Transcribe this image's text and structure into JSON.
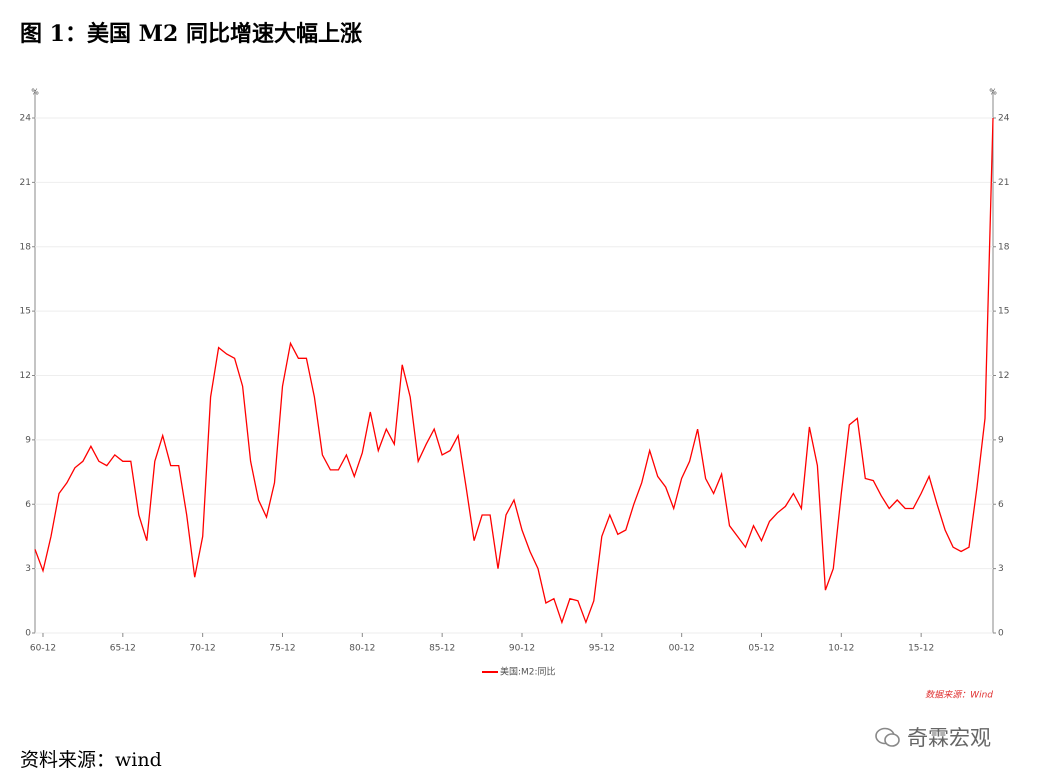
{
  "title": "图 1：美国 M2 同比增速大幅上涨",
  "footer": "资料来源：wind",
  "watermark": "奇霖宏观",
  "chart_data": {
    "type": "line",
    "y_unit": "%",
    "y2_unit": "%",
    "source": "数据来源：Wind",
    "grid": true,
    "legend": "bottom",
    "x": [
      "60-06",
      "60-12",
      "61-06",
      "61-12",
      "62-06",
      "62-12",
      "63-06",
      "63-12",
      "64-06",
      "64-12",
      "65-06",
      "65-12",
      "66-06",
      "66-12",
      "67-06",
      "67-12",
      "68-06",
      "68-12",
      "69-06",
      "69-12",
      "70-06",
      "70-12",
      "71-06",
      "71-12",
      "72-06",
      "72-12",
      "73-06",
      "73-12",
      "74-06",
      "74-12",
      "75-06",
      "75-12",
      "76-06",
      "76-12",
      "77-06",
      "77-12",
      "78-06",
      "78-12",
      "79-06",
      "79-12",
      "80-06",
      "80-12",
      "81-06",
      "81-12",
      "82-06",
      "82-12",
      "83-06",
      "83-12",
      "84-06",
      "84-12",
      "85-06",
      "85-12",
      "86-06",
      "86-12",
      "87-06",
      "87-12",
      "88-06",
      "88-12",
      "89-06",
      "89-12",
      "90-06",
      "90-12",
      "91-06",
      "91-12",
      "92-06",
      "92-12",
      "93-06",
      "93-12",
      "94-06",
      "94-12",
      "95-06",
      "95-12",
      "96-06",
      "96-12",
      "97-06",
      "97-12",
      "98-06",
      "98-12",
      "99-06",
      "99-12",
      "00-06",
      "00-12",
      "01-06",
      "01-12",
      "02-06",
      "02-12",
      "03-06",
      "03-12",
      "04-06",
      "04-12",
      "05-06",
      "05-12",
      "06-06",
      "06-12",
      "07-06",
      "07-12",
      "08-06",
      "08-12",
      "09-06",
      "09-12",
      "10-06",
      "10-12",
      "11-06",
      "11-12",
      "12-06",
      "12-12",
      "13-06",
      "13-12",
      "14-06",
      "14-12",
      "15-06",
      "15-12",
      "16-06",
      "16-12",
      "17-06",
      "17-12",
      "18-06",
      "18-12",
      "19-06",
      "19-12",
      "20-06"
    ],
    "xticks": [
      "60-12",
      "65-12",
      "70-12",
      "75-12",
      "80-12",
      "85-12",
      "90-12",
      "95-12",
      "00-12",
      "05-12",
      "10-12",
      "15-12"
    ],
    "series": [
      {
        "name": "美国:M2:同比",
        "color": "#ff0000",
        "values": [
          3.9,
          2.9,
          4.5,
          6.5,
          7.0,
          7.7,
          8.0,
          8.7,
          8.0,
          7.8,
          8.3,
          8.0,
          8.0,
          5.5,
          4.3,
          8.0,
          9.2,
          7.8,
          7.8,
          5.5,
          2.6,
          4.5,
          11.0,
          13.3,
          13.0,
          12.8,
          11.5,
          8.0,
          6.2,
          5.4,
          7.0,
          11.5,
          13.5,
          12.8,
          12.8,
          11.0,
          8.3,
          7.6,
          7.6,
          8.3,
          7.3,
          8.4,
          10.3,
          8.5,
          9.5,
          8.8,
          12.5,
          11.0,
          8.0,
          8.8,
          9.5,
          8.3,
          8.5,
          9.2,
          6.8,
          4.3,
          5.5,
          5.5,
          3.0,
          5.5,
          6.2,
          4.8,
          3.8,
          3.0,
          1.4,
          1.6,
          0.5,
          1.6,
          1.5,
          0.5,
          1.5,
          4.5,
          5.5,
          4.6,
          4.8,
          6.0,
          7.0,
          8.5,
          7.3,
          6.8,
          5.8,
          7.2,
          8.0,
          9.5,
          7.2,
          6.5,
          7.4,
          5.0,
          4.5,
          4.0,
          5.0,
          4.3,
          5.2,
          5.6,
          5.9,
          6.5,
          5.8,
          9.6,
          7.8,
          2.0,
          3.0,
          6.5,
          9.7,
          10.0,
          7.2,
          7.1,
          6.4,
          5.8,
          6.2,
          5.8,
          5.8,
          6.5,
          7.3,
          6.0,
          4.8,
          4.0,
          3.8,
          4.0,
          6.8,
          10.0,
          24.0
        ]
      }
    ],
    "ylim": [
      0,
      24
    ],
    "yticks": [
      0,
      3,
      6,
      9,
      12,
      15,
      18,
      21,
      24
    ],
    "y2lim": [
      0,
      24
    ],
    "y2ticks": [
      0,
      3,
      6,
      9,
      12,
      15,
      18,
      21,
      24
    ]
  }
}
